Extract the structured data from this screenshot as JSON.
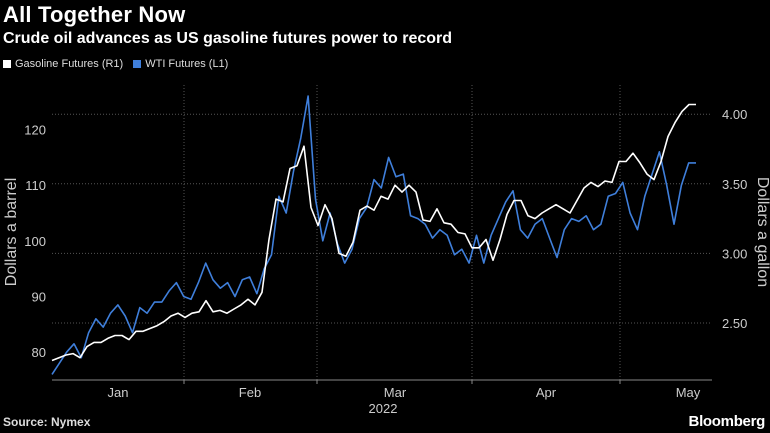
{
  "title": "All Together Now",
  "subtitle": "Crude oil advances as US gasoline futures power to record",
  "source": "Source: Nymex",
  "brand": "Bloomberg",
  "colors": {
    "background": "#000000",
    "gasoline": "#ffffff",
    "wti": "#3f7fdb",
    "grid": "#555555",
    "axis_text": "#cccccc"
  },
  "chart_data": {
    "type": "line",
    "title": "All Together Now",
    "subtitle": "Crude oil advances as US gasoline futures power to record",
    "legend_position": "top-left",
    "grid": true,
    "x_labels": [
      "Jan",
      "Feb",
      "Mar",
      "Apr",
      "May"
    ],
    "x_year_label": "2022",
    "y_left": {
      "label": "Dollars a barrel",
      "ticks": [
        80,
        90,
        100,
        110,
        120
      ],
      "range": [
        75,
        128
      ]
    },
    "y_right": {
      "label": "Dollars a gallon",
      "ticks": [
        "2.50",
        "3.00",
        "3.50",
        "4.00"
      ],
      "range": [
        2.09,
        4.21
      ]
    },
    "series": [
      {
        "name": "Gasoline Futures (R1)",
        "axis": "right",
        "color": "#ffffff",
        "values": [
          2.23,
          2.25,
          2.27,
          2.28,
          2.25,
          2.33,
          2.36,
          2.36,
          2.39,
          2.41,
          2.41,
          2.38,
          2.44,
          2.44,
          2.46,
          2.48,
          2.51,
          2.55,
          2.57,
          2.54,
          2.57,
          2.58,
          2.66,
          2.58,
          2.59,
          2.57,
          2.6,
          2.63,
          2.67,
          2.63,
          2.72,
          3.1,
          3.39,
          3.37,
          3.61,
          3.63,
          3.77,
          3.33,
          3.2,
          3.35,
          3.25,
          3.0,
          2.98,
          3.08,
          3.31,
          3.34,
          3.31,
          3.41,
          3.39,
          3.49,
          3.44,
          3.49,
          3.44,
          3.24,
          3.23,
          3.32,
          3.22,
          3.21,
          3.15,
          3.14,
          3.04,
          3.04,
          3.1,
          2.95,
          3.1,
          3.28,
          3.38,
          3.38,
          3.27,
          3.25,
          3.29,
          3.32,
          3.35,
          3.32,
          3.29,
          3.38,
          3.47,
          3.51,
          3.48,
          3.52,
          3.51,
          3.66,
          3.66,
          3.72,
          3.65,
          3.57,
          3.53,
          3.66,
          3.84,
          3.94,
          4.02,
          4.07,
          4.07
        ]
      },
      {
        "name": "WTI Futures (L1)",
        "axis": "left",
        "color": "#3f7fdb",
        "values": [
          76.0,
          78.0,
          80.0,
          81.5,
          79.0,
          83.5,
          86.0,
          84.5,
          87.0,
          88.5,
          86.5,
          83.5,
          88.0,
          87.0,
          89.0,
          89.0,
          91.0,
          92.5,
          90.0,
          89.5,
          92.5,
          96.0,
          93.0,
          91.5,
          92.5,
          90.0,
          93.0,
          93.5,
          90.5,
          95.0,
          97.5,
          108.0,
          105.0,
          112.5,
          118.5,
          126.0,
          107.5,
          100.0,
          105.0,
          99.5,
          96.0,
          98.5,
          104.0,
          106.0,
          111.0,
          109.5,
          115.0,
          111.5,
          112.0,
          104.5,
          104.0,
          103.0,
          100.5,
          102.0,
          101.0,
          97.5,
          98.5,
          96.0,
          101.0,
          96.0,
          101.0,
          104.0,
          107.0,
          109.0,
          102.0,
          100.5,
          103.0,
          104.0,
          100.5,
          97.0,
          102.0,
          104.0,
          103.5,
          104.5,
          102.0,
          103.0,
          108.0,
          108.5,
          110.5,
          105.0,
          102.0,
          108.0,
          112.0,
          116.0,
          110.0,
          103.0,
          110.0,
          114.0,
          114.0
        ]
      }
    ]
  }
}
